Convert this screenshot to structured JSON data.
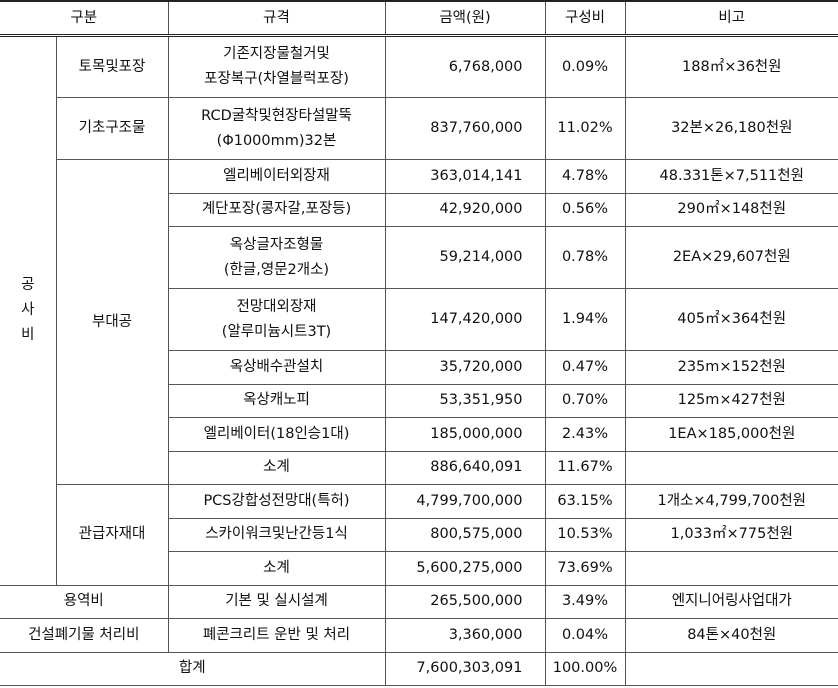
{
  "header": [
    "구분",
    "규격",
    "금액(원)",
    "구성비",
    "비고"
  ],
  "sections": [
    {
      "label": "공\n사\n비",
      "groups": [
        {
          "label": "토목및포장",
          "items": [
            {
              "spec": "기존지장물철거및\n포장복구(차열블럭포장)",
              "amount": "6,768,000",
              "ratio": "0.09%",
              "note": "188㎡×36천원"
            }
          ]
        },
        {
          "label": "기초구조물",
          "items": [
            {
              "spec": "RCD굴착및현장타설말뚝\n(Φ1000mm)32본",
              "amount": "837,760,000",
              "ratio": "11.02%",
              "note": "32본×26,180천원"
            }
          ]
        },
        {
          "label": "부대공",
          "items": [
            {
              "spec": "엘리베이터외장재",
              "amount": "363,014,141",
              "ratio": "4.78%",
              "note": "48.331톤×7,511천원"
            },
            {
              "spec": "계단포장(콩자갈,포장등)",
              "amount": "42,920,000",
              "ratio": "0.56%",
              "note": "290㎡×148천원"
            },
            {
              "spec": "옥상글자조형물\n(한글,영문2개소)",
              "amount": "59,214,000",
              "ratio": "0.78%",
              "note": "2EA×29,607천원"
            },
            {
              "spec": "전망대외장재\n(알루미늄시트3T)",
              "amount": "147,420,000",
              "ratio": "1.94%",
              "note": "405㎡×364천원"
            },
            {
              "spec": "옥상배수관설치",
              "amount": "35,720,000",
              "ratio": "0.47%",
              "note": "235m×152천원"
            },
            {
              "spec": "옥상캐노피",
              "amount": "53,351,950",
              "ratio": "0.70%",
              "note": "125m×427천원"
            },
            {
              "spec": "엘리베이터(18인승1대)",
              "amount": "185,000,000",
              "ratio": "2.43%",
              "note": "1EA×185,000천원"
            },
            {
              "spec": "소계",
              "amount": "886,640,091",
              "ratio": "11.67%"
            }
          ]
        },
        {
          "label": "관급자재대",
          "items": [
            {
              "spec": "PCS강합성전망대(특허)",
              "amount": "4,799,700,000",
              "ratio": "63.15%",
              "note": "1개소×4,799,700천원"
            },
            {
              "spec": "스카이워크및난간등1식",
              "amount": "800,575,000",
              "ratio": "10.53%",
              "note": "1,033㎡×775천원"
            },
            {
              "spec": "소계",
              "amount": "5,600,275,000",
              "ratio": "73.69%"
            }
          ]
        }
      ]
    },
    {
      "label": "용역비",
      "items": [
        {
          "spec": "기본 및 실시설계",
          "amount": "265,500,000",
          "ratio": "3.49%",
          "note": "엔지니어링사업대가"
        }
      ]
    },
    {
      "label": "건설폐기물 처리비",
      "items": [
        {
          "spec": "폐콘크리트 운반 및 처리",
          "amount": "3,360,000",
          "ratio": "0.04%",
          "note": "84톤×40천원"
        }
      ]
    }
  ],
  "total": {
    "label": "합계",
    "amount": "7,600,303,091",
    "ratio": "100.00%"
  }
}
